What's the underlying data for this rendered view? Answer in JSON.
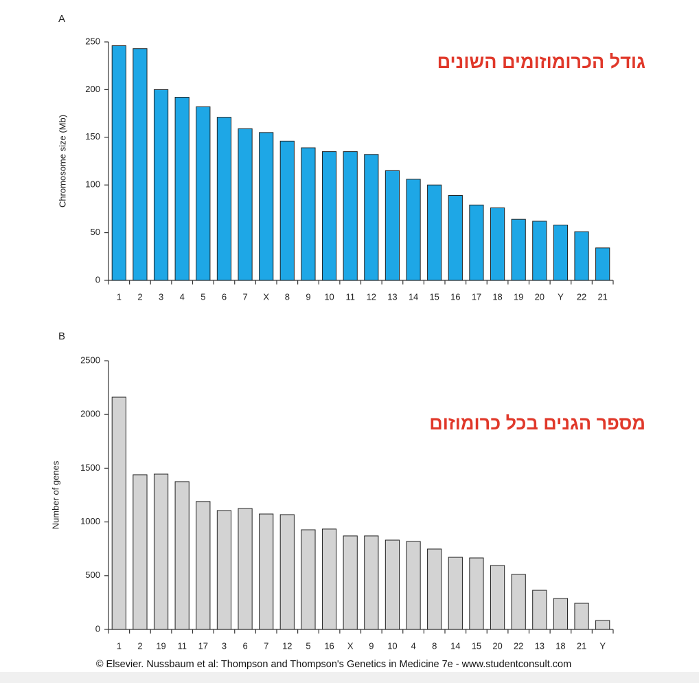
{
  "chart_data": [
    {
      "type": "bar",
      "panel_label": "A",
      "annotation": "גודל הכרומוזומים השונים",
      "y_label": "Chromosome size (Mb)",
      "categories": [
        "1",
        "2",
        "3",
        "4",
        "5",
        "6",
        "7",
        "X",
        "8",
        "9",
        "10",
        "11",
        "12",
        "13",
        "14",
        "15",
        "16",
        "17",
        "18",
        "19",
        "20",
        "Y",
        "22",
        "21"
      ],
      "values": [
        246,
        243,
        200,
        192,
        182,
        171,
        159,
        155,
        146,
        139,
        135,
        135,
        132,
        115,
        106,
        100,
        89,
        79,
        76,
        64,
        62,
        58,
        51,
        34
      ],
      "color": "#1ea7e6",
      "ylim": [
        0,
        250
      ],
      "yticks": [
        0,
        50,
        100,
        150,
        200,
        250
      ]
    },
    {
      "type": "bar",
      "panel_label": "B",
      "annotation": "מספר הגנים בכל כרומוזום",
      "y_label": "Number of genes",
      "categories": [
        "1",
        "2",
        "19",
        "11",
        "17",
        "3",
        "6",
        "7",
        "12",
        "5",
        "16",
        "X",
        "9",
        "10",
        "4",
        "8",
        "14",
        "15",
        "20",
        "22",
        "13",
        "18",
        "21",
        "Y"
      ],
      "values": [
        2161,
        1439,
        1445,
        1375,
        1190,
        1106,
        1125,
        1074,
        1068,
        927,
        934,
        870,
        870,
        831,
        818,
        748,
        671,
        665,
        595,
        512,
        364,
        288,
        243,
        83
      ],
      "color": "#d3d3d3",
      "ylim": [
        0,
        2500
      ],
      "yticks": [
        0,
        500,
        1000,
        1500,
        2000,
        2500
      ]
    }
  ],
  "credit": "© Elsevier. Nussbaum et al: Thompson and Thompson's Genetics in Medicine 7e - www.studentconsult.com"
}
